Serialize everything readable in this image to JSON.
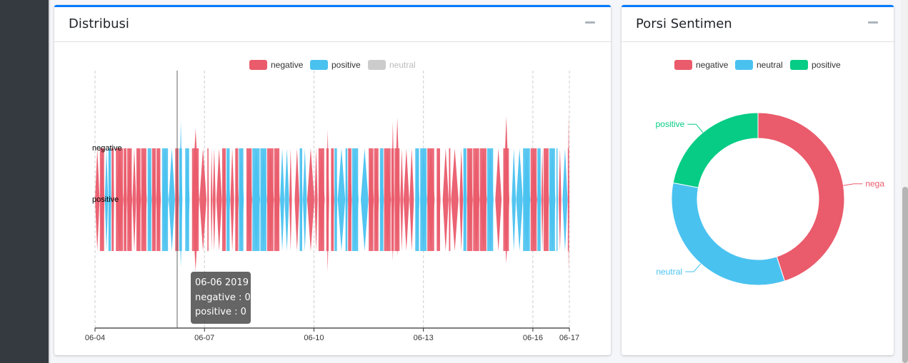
{
  "distribution_card": {
    "title": "Distribusi",
    "legend": [
      {
        "label": "negative",
        "color": "#ea5b6b",
        "active": true
      },
      {
        "label": "positive",
        "color": "#4ac2f0",
        "active": true
      },
      {
        "label": "neutral",
        "color": "#cccccc",
        "active": false
      }
    ],
    "tooltip": {
      "date": "06-06 2019",
      "negative": "negative : 0",
      "positive": "positive : 0"
    }
  },
  "sentiment_card": {
    "title": "Porsi Sentimen",
    "legend": [
      {
        "label": "negative",
        "color": "#ea5b6b"
      },
      {
        "label": "neutral",
        "color": "#4ac2f0"
      },
      {
        "label": "positive",
        "color": "#06cc85"
      }
    ]
  },
  "chart_data": [
    {
      "type": "themeriver",
      "x": [
        "06-04",
        "06-07",
        "06-10",
        "06-13",
        "06-16",
        "06-17"
      ],
      "y_labels": [
        "negative",
        "positive"
      ],
      "legend": [
        "negative",
        "positive",
        "neutral"
      ],
      "legend_placement": "top-center",
      "grid": true
    },
    {
      "type": "pie",
      "donut": true,
      "legend_placement": "top-center",
      "categories": [
        "negative",
        "neutral",
        "positive"
      ],
      "values": [
        45,
        33,
        22
      ],
      "slice_labels": [
        "nega",
        "neutral",
        "positive"
      ],
      "colors": [
        "#ea5b6b",
        "#4ac2f0",
        "#06cc85"
      ]
    }
  ]
}
